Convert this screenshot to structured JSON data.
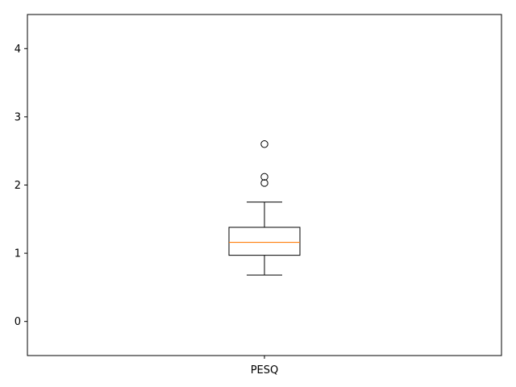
{
  "chart_data": {
    "type": "box",
    "title": "",
    "xlabel": "",
    "ylabel": "",
    "categories": [
      "PESQ"
    ],
    "ylim": [
      -0.5,
      4.5
    ],
    "yticks": [
      0,
      1,
      2,
      3,
      4
    ],
    "ytick_labels": [
      "0",
      "1",
      "2",
      "3",
      "4"
    ],
    "grid": false,
    "boxes": [
      {
        "name": "PESQ",
        "whisker_low": 0.68,
        "q1": 0.97,
        "median": 1.16,
        "q3": 1.38,
        "whisker_high": 1.75,
        "outliers": [
          2.03,
          2.12,
          2.6
        ]
      }
    ],
    "colors": {
      "box": "#000000",
      "median": "#ff7f0e",
      "outlier_edge": "#000000"
    }
  }
}
